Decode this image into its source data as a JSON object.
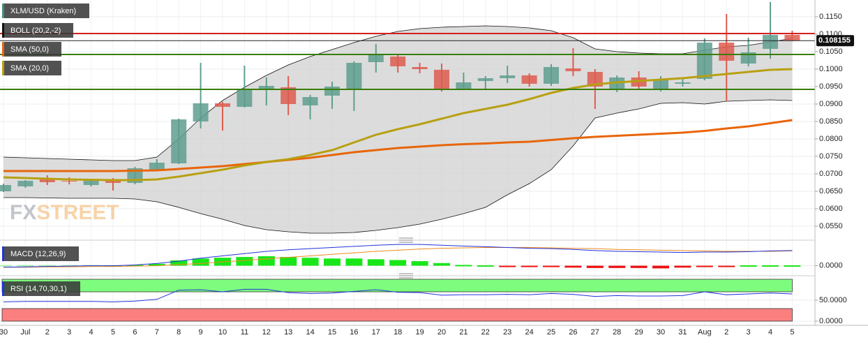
{
  "chart_data": [
    {
      "type": "candlestick",
      "title": "XLM/USD (Kraken)",
      "categories": [
        "30",
        "Jul",
        "2",
        "3",
        "4",
        "5",
        "6",
        "7",
        "8",
        "9",
        "10",
        "11",
        "12",
        "13",
        "14",
        "15",
        "16",
        "17",
        "18",
        "19",
        "20",
        "21",
        "22",
        "23",
        "24",
        "25",
        "26",
        "27",
        "28",
        "29",
        "30",
        "31",
        "Aug",
        "2",
        "3",
        "4",
        "5"
      ],
      "open": [
        0.065,
        0.0664,
        0.0684,
        0.068,
        0.0668,
        0.0682,
        0.0674,
        0.0712,
        0.073,
        0.085,
        0.0902,
        0.0892,
        0.094,
        0.0948,
        0.0896,
        0.0924,
        0.0942,
        0.102,
        0.1036,
        0.1006,
        0.0998,
        0.0942,
        0.0966,
        0.0974,
        0.0982,
        0.0958,
        0.1002,
        0.0992,
        0.0944,
        0.0976,
        0.0944,
        0.0958,
        0.0972,
        0.1076,
        0.1016,
        0.1058,
        0.1098
      ],
      "high": [
        0.0672,
        0.0682,
        0.0696,
        0.069,
        0.0684,
        0.0688,
        0.072,
        0.0742,
        0.0858,
        0.1018,
        0.0906,
        0.101,
        0.0976,
        0.098,
        0.0926,
        0.0964,
        0.1022,
        0.1072,
        0.104,
        0.1018,
        0.1016,
        0.099,
        0.098,
        0.101,
        0.0988,
        0.1014,
        0.106,
        0.1,
        0.0982,
        0.0994,
        0.098,
        0.0972,
        0.1088,
        0.1158,
        0.109,
        0.1192,
        0.111
      ],
      "low": [
        0.0648,
        0.066,
        0.0668,
        0.067,
        0.0664,
        0.0652,
        0.067,
        0.071,
        0.0728,
        0.083,
        0.0824,
        0.089,
        0.0896,
        0.0868,
        0.0856,
        0.0886,
        0.088,
        0.099,
        0.099,
        0.0988,
        0.0936,
        0.094,
        0.0942,
        0.096,
        0.095,
        0.0952,
        0.098,
        0.0886,
        0.0934,
        0.0944,
        0.0936,
        0.095,
        0.0968,
        0.0908,
        0.1008,
        0.103,
        0.108
      ],
      "close": [
        0.0668,
        0.068,
        0.0676,
        0.0678,
        0.068,
        0.0674,
        0.0716,
        0.0732,
        0.0856,
        0.0902,
        0.0892,
        0.094,
        0.0952,
        0.09,
        0.092,
        0.095,
        0.1018,
        0.1042,
        0.1008,
        0.1,
        0.0944,
        0.0962,
        0.0974,
        0.0982,
        0.0958,
        0.1006,
        0.0994,
        0.095,
        0.0976,
        0.095,
        0.097,
        0.0962,
        0.1076,
        0.1024,
        0.1048,
        0.1098,
        0.1082
      ],
      "up_color": "#5f9e8f",
      "down_color": "#dd5c4f",
      "ylim": [
        0.0518,
        0.1198
      ],
      "yticks": [
        {
          "value": 0.055,
          "label": "0.0550"
        },
        {
          "value": 0.06,
          "label": "0.0600"
        },
        {
          "value": 0.065,
          "label": "0.0650"
        },
        {
          "value": 0.07,
          "label": "0.0700"
        },
        {
          "value": 0.075,
          "label": "0.0750"
        },
        {
          "value": 0.08,
          "label": "0.0800"
        },
        {
          "value": 0.085,
          "label": "0.0850"
        },
        {
          "value": 0.09,
          "label": "0.0900"
        },
        {
          "value": 0.095,
          "label": "0.0950"
        },
        {
          "value": 0.1,
          "label": "0.1000"
        },
        {
          "value": 0.105,
          "label": "0.1050"
        },
        {
          "value": 0.11,
          "label": "0.1100"
        },
        {
          "value": 0.115,
          "label": "0.1150"
        }
      ],
      "grid": true,
      "legend_color": "#3f8f80",
      "series": [
        {
          "name": "BOLL (20,2,-2)",
          "color": "#111111",
          "fill": "#d0d0d0",
          "upper": [
            0.0748,
            0.0746,
            0.0744,
            0.0742,
            0.074,
            0.0738,
            0.0738,
            0.0748,
            0.08,
            0.086,
            0.091,
            0.0948,
            0.0982,
            0.1012,
            0.1036,
            0.1056,
            0.1076,
            0.1094,
            0.1108,
            0.1116,
            0.112,
            0.1122,
            0.1124,
            0.1122,
            0.1118,
            0.111,
            0.109,
            0.1058,
            0.105,
            0.1046,
            0.1044,
            0.1044,
            0.1054,
            0.1064,
            0.1068,
            0.1078,
            0.1088
          ],
          "lower": [
            0.0632,
            0.0632,
            0.0631,
            0.063,
            0.063,
            0.063,
            0.0628,
            0.062,
            0.0604,
            0.0586,
            0.057,
            0.0552,
            0.054,
            0.0534,
            0.053,
            0.053,
            0.0532,
            0.0538,
            0.0546,
            0.0556,
            0.057,
            0.0586,
            0.0604,
            0.064,
            0.0672,
            0.0712,
            0.078,
            0.086,
            0.0874,
            0.0886,
            0.0902,
            0.0904,
            0.09,
            0.0908,
            0.091,
            0.0912,
            0.091
          ]
        },
        {
          "name": "SMA (50,0)",
          "color": "#e8650a",
          "values": [
            0.0708,
            0.0708,
            0.0708,
            0.0708,
            0.0708,
            0.0708,
            0.0709,
            0.071,
            0.0714,
            0.0718,
            0.0722,
            0.0728,
            0.0734,
            0.074,
            0.0746,
            0.0754,
            0.0762,
            0.0768,
            0.0774,
            0.0778,
            0.0782,
            0.0785,
            0.0787,
            0.079,
            0.0792,
            0.0797,
            0.0802,
            0.0806,
            0.0809,
            0.0812,
            0.0815,
            0.0818,
            0.0823,
            0.083,
            0.0836,
            0.0845,
            0.0854
          ]
        },
        {
          "name": "SMA (20,0)",
          "color": "#b8a012",
          "values": [
            0.069,
            0.0688,
            0.0686,
            0.0684,
            0.0683,
            0.0682,
            0.0682,
            0.0684,
            0.0692,
            0.0702,
            0.0712,
            0.0724,
            0.0734,
            0.0742,
            0.0754,
            0.0768,
            0.079,
            0.0812,
            0.0828,
            0.0842,
            0.0858,
            0.0874,
            0.0886,
            0.0898,
            0.0914,
            0.0932,
            0.0946,
            0.0956,
            0.0962,
            0.0966,
            0.097,
            0.0974,
            0.098,
            0.0986,
            0.0992,
            0.0998,
            0.1
          ]
        }
      ],
      "hlines": [
        {
          "value": 0.1102,
          "color": "#d61f1f"
        },
        {
          "value": 0.1042,
          "color": "#3a7d0a"
        },
        {
          "value": 0.0942,
          "color": "#3a7d0a"
        }
      ],
      "last_price": 0.108155,
      "watermark": [
        "FX",
        "STREET"
      ]
    },
    {
      "type": "macd",
      "title": "MACD (12,26,9)",
      "macd": [
        -0.0004,
        -0.0003,
        -0.0002,
        -0.0001,
        0,
        0,
        0.0002,
        0.0006,
        0.0012,
        0.002,
        0.0026,
        0.0032,
        0.0038,
        0.0042,
        0.0045,
        0.0048,
        0.0051,
        0.0054,
        0.0056,
        0.0056,
        0.0054,
        0.0052,
        0.005,
        0.0048,
        0.0046,
        0.0045,
        0.0043,
        0.004,
        0.0038,
        0.0037,
        0.0036,
        0.0035,
        0.0036,
        0.0036,
        0.0037,
        0.0039,
        0.004
      ],
      "signal": [
        -0.0004,
        -0.0004,
        -0.0003,
        -0.0003,
        -0.0002,
        -0.0002,
        -0.0001,
        0,
        0.0003,
        0.0006,
        0.001,
        0.0014,
        0.0018,
        0.0022,
        0.0026,
        0.003,
        0.0034,
        0.0038,
        0.0041,
        0.0044,
        0.0046,
        0.0047,
        0.0048,
        0.0048,
        0.0048,
        0.0047,
        0.0046,
        0.0045,
        0.0043,
        0.0042,
        0.0041,
        0.004,
        0.0039,
        0.0038,
        0.0038,
        0.0038,
        0.0039
      ],
      "histogram": [
        0,
        0,
        0,
        0,
        0,
        0.0001,
        0.0002,
        0.0005,
        0.0014,
        0.0019,
        0.0021,
        0.0023,
        0.0025,
        0.0023,
        0.0021,
        0.0019,
        0.0019,
        0.0017,
        0.0015,
        0.0012,
        0.0007,
        0.0002,
        0.0001,
        -0.0001,
        -0.0002,
        -0.0003,
        -0.0005,
        -0.0006,
        -0.0006,
        -0.0006,
        -0.0007,
        -0.0005,
        -0.0002,
        -0.0001,
        0.0001,
        0.0001,
        0.0001
      ],
      "macd_color": "#2233dd",
      "signal_color": "#f08a1c",
      "up_color": "#19e619",
      "down_color": "#ee1111",
      "legend_color": "#2233dd",
      "ylim": [
        -0.0021,
        0.006
      ],
      "yticks": [
        {
          "value": 0,
          "label": "0.0000"
        }
      ]
    },
    {
      "type": "rsi",
      "title": "RSI (14,70,30,1)",
      "values": [
        46,
        47,
        47,
        47,
        47,
        46,
        48,
        52,
        74,
        75,
        70,
        76,
        76,
        68,
        66,
        67,
        71,
        75,
        69,
        68,
        62,
        63,
        63,
        64,
        63,
        66,
        64,
        59,
        61,
        60,
        60,
        61,
        70,
        63,
        65,
        67,
        65
      ],
      "color": "#2233dd",
      "legend_color": "#2233dd",
      "bands": [
        {
          "from": 70,
          "to": 100,
          "color": "#7dfc7d"
        },
        {
          "from": 0,
          "to": 30,
          "color": "#fc7f7f"
        }
      ],
      "ylim": [
        -10,
        103.3
      ],
      "yticks": [
        {
          "value": 50,
          "label": "50.0000"
        },
        {
          "value": 0,
          "label": "0.0000"
        }
      ]
    }
  ]
}
